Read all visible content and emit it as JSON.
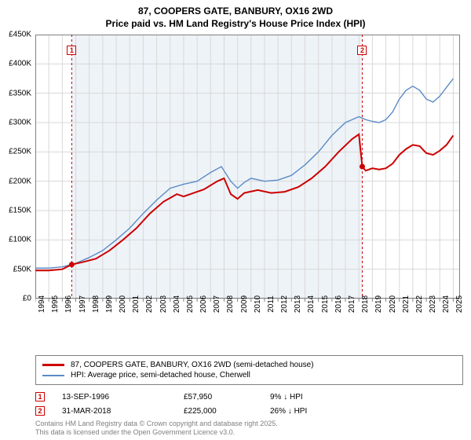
{
  "title": {
    "line1": "87, COOPERS GATE, BANBURY, OX16 2WD",
    "line2": "Price paid vs. HM Land Registry's House Price Index (HPI)"
  },
  "colors": {
    "series_price": "#cc0000",
    "series_hpi": "#5b8bc5",
    "grid": "#d8d8d8",
    "axis": "#808080",
    "band": "#eef3f8",
    "marker_border": "#cc0000",
    "text": "#000000",
    "footer_text": "#808080"
  },
  "chart": {
    "type": "line",
    "x_years": [
      1994,
      1995,
      1996,
      1997,
      1998,
      1999,
      2000,
      2001,
      2002,
      2003,
      2004,
      2005,
      2006,
      2007,
      2008,
      2009,
      2010,
      2011,
      2012,
      2013,
      2014,
      2015,
      2016,
      2017,
      2018,
      2019,
      2020,
      2021,
      2022,
      2023,
      2024,
      2025
    ],
    "x_domain": [
      1994,
      2025.5
    ],
    "y_ticks": [
      0,
      50,
      100,
      150,
      200,
      250,
      300,
      350,
      400,
      450
    ],
    "y_tick_labels": [
      "£0",
      "£50K",
      "£100K",
      "£150K",
      "£200K",
      "£250K",
      "£300K",
      "£350K",
      "£400K",
      "£450K"
    ],
    "y_domain": [
      0,
      450
    ],
    "band": {
      "from": 1996.7,
      "to": 2018.25
    },
    "line_width_price": 2.0,
    "line_width_hpi": 1.4,
    "series_price": [
      [
        1994.0,
        48
      ],
      [
        1995.0,
        48
      ],
      [
        1996.0,
        50
      ],
      [
        1996.7,
        58
      ],
      [
        1997.5,
        62
      ],
      [
        1998.5,
        68
      ],
      [
        1999.5,
        82
      ],
      [
        2000.5,
        100
      ],
      [
        2001.5,
        120
      ],
      [
        2002.5,
        145
      ],
      [
        2003.5,
        165
      ],
      [
        2004.5,
        178
      ],
      [
        2005.0,
        174
      ],
      [
        2005.5,
        178
      ],
      [
        2006.5,
        186
      ],
      [
        2007.5,
        200
      ],
      [
        2008.0,
        205
      ],
      [
        2008.5,
        178
      ],
      [
        2009.0,
        170
      ],
      [
        2009.5,
        180
      ],
      [
        2010.5,
        185
      ],
      [
        2011.5,
        180
      ],
      [
        2012.5,
        182
      ],
      [
        2013.5,
        190
      ],
      [
        2014.5,
        205
      ],
      [
        2015.5,
        225
      ],
      [
        2016.5,
        250
      ],
      [
        2017.5,
        272
      ],
      [
        2018.0,
        280
      ],
      [
        2018.25,
        225
      ],
      [
        2018.5,
        218
      ],
      [
        2019.0,
        222
      ],
      [
        2019.5,
        220
      ],
      [
        2020.0,
        222
      ],
      [
        2020.5,
        230
      ],
      [
        2021.0,
        245
      ],
      [
        2021.5,
        255
      ],
      [
        2022.0,
        262
      ],
      [
        2022.5,
        260
      ],
      [
        2023.0,
        248
      ],
      [
        2023.5,
        245
      ],
      [
        2024.0,
        252
      ],
      [
        2024.5,
        262
      ],
      [
        2025.0,
        278
      ]
    ],
    "series_hpi": [
      [
        1994.0,
        52
      ],
      [
        1995.0,
        52
      ],
      [
        1996.0,
        54
      ],
      [
        1997.0,
        60
      ],
      [
        1998.0,
        70
      ],
      [
        1999.0,
        82
      ],
      [
        2000.0,
        100
      ],
      [
        2001.0,
        120
      ],
      [
        2002.0,
        145
      ],
      [
        2003.0,
        168
      ],
      [
        2004.0,
        188
      ],
      [
        2005.0,
        195
      ],
      [
        2006.0,
        200
      ],
      [
        2007.0,
        215
      ],
      [
        2007.8,
        225
      ],
      [
        2008.5,
        200
      ],
      [
        2009.0,
        188
      ],
      [
        2009.5,
        198
      ],
      [
        2010.0,
        205
      ],
      [
        2011.0,
        200
      ],
      [
        2012.0,
        202
      ],
      [
        2013.0,
        210
      ],
      [
        2014.0,
        228
      ],
      [
        2015.0,
        250
      ],
      [
        2016.0,
        278
      ],
      [
        2017.0,
        300
      ],
      [
        2018.0,
        310
      ],
      [
        2018.5,
        305
      ],
      [
        2019.0,
        302
      ],
      [
        2019.5,
        300
      ],
      [
        2020.0,
        305
      ],
      [
        2020.5,
        318
      ],
      [
        2021.0,
        340
      ],
      [
        2021.5,
        355
      ],
      [
        2022.0,
        362
      ],
      [
        2022.5,
        355
      ],
      [
        2023.0,
        340
      ],
      [
        2023.5,
        335
      ],
      [
        2024.0,
        345
      ],
      [
        2024.5,
        360
      ],
      [
        2025.0,
        375
      ]
    ],
    "markers": [
      {
        "label": "1",
        "x": 1996.7,
        "y": 58,
        "vline": true
      },
      {
        "label": "2",
        "x": 2018.25,
        "y": 225,
        "vline": true
      }
    ]
  },
  "legend": {
    "items": [
      {
        "color": "#cc0000",
        "label": "87, COOPERS GATE, BANBURY, OX16 2WD (semi-detached house)"
      },
      {
        "color": "#5b8bc5",
        "label": "HPI: Average price, semi-detached house, Cherwell"
      }
    ]
  },
  "sales": [
    {
      "num": "1",
      "date": "13-SEP-1996",
      "price": "£57,950",
      "delta": "9% ↓ HPI",
      "border": "#cc0000"
    },
    {
      "num": "2",
      "date": "31-MAR-2018",
      "price": "£225,000",
      "delta": "26% ↓ HPI",
      "border": "#cc0000"
    }
  ],
  "footer": {
    "line1": "Contains HM Land Registry data © Crown copyright and database right 2025.",
    "line2": "This data is licensed under the Open Government Licence v3.0."
  }
}
